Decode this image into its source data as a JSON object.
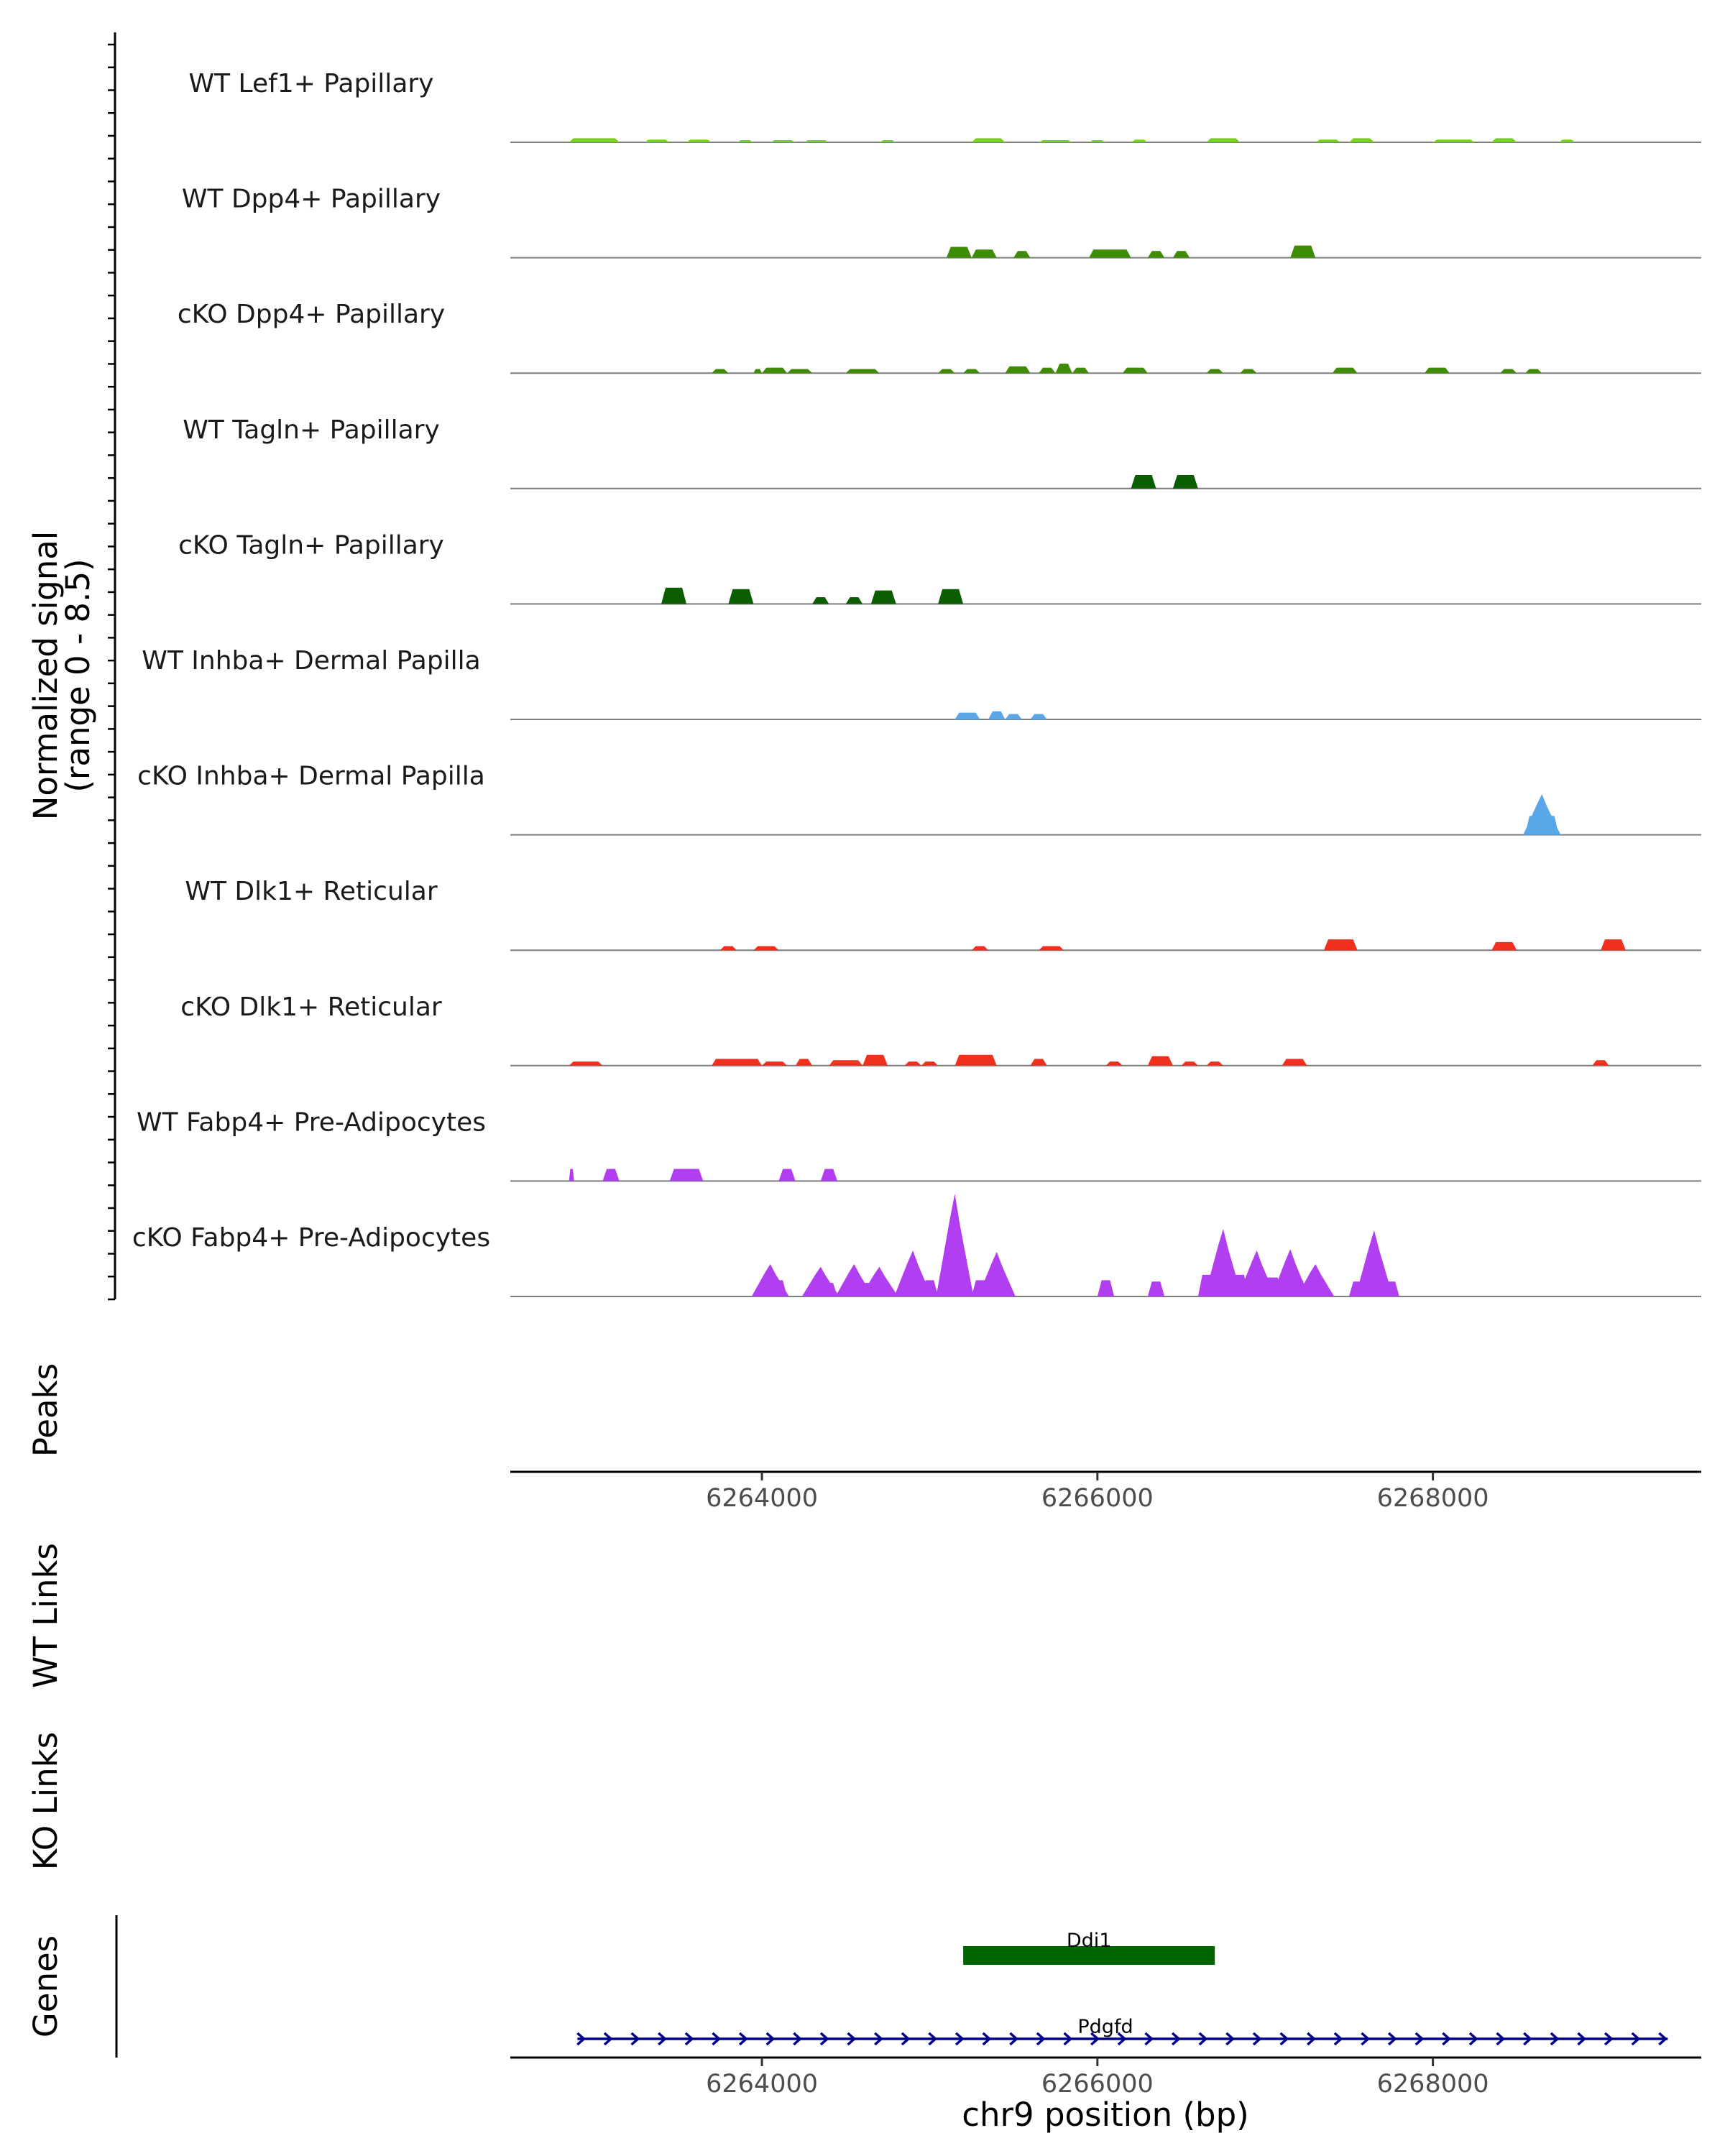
{
  "chart_data": {
    "type": "area",
    "title": "",
    "region": {
      "chrom": "chr9",
      "start": 6262500,
      "end": 6269600
    },
    "signal_axis": {
      "label_line1": "Normalized signal",
      "label_line2": "(range 0 - 8.5)",
      "ylim": [
        0,
        8.5
      ]
    },
    "x_axis": {
      "label": "chr9 position (bp)",
      "ticks": [
        6264000,
        6266000,
        6268000
      ],
      "tick_labels": [
        "6264000",
        "6266000",
        "6268000"
      ]
    },
    "tracks": [
      {
        "name": "WT Lef1+ Papillary",
        "color": "#76d11c",
        "segments": [
          [
            6262850,
            6263150,
            0.3
          ],
          [
            6263300,
            6263450,
            0.2
          ],
          [
            6263550,
            6263700,
            0.2
          ],
          [
            6263850,
            6263950,
            0.15
          ],
          [
            6264050,
            6264200,
            0.15
          ],
          [
            6264250,
            6264400,
            0.15
          ],
          [
            6264700,
            6264800,
            0.15
          ],
          [
            6265250,
            6265450,
            0.3
          ],
          [
            6265650,
            6265850,
            0.15
          ],
          [
            6265950,
            6266050,
            0.15
          ],
          [
            6266200,
            6266300,
            0.2
          ],
          [
            6266650,
            6266850,
            0.3
          ],
          [
            6267300,
            6267450,
            0.2
          ],
          [
            6267500,
            6267650,
            0.3
          ],
          [
            6268000,
            6268250,
            0.2
          ],
          [
            6268350,
            6268500,
            0.3
          ],
          [
            6268750,
            6268850,
            0.2
          ]
        ]
      },
      {
        "name": "WT Dpp4+ Papillary",
        "color": "#3f8c06",
        "segments": [
          [
            6265100,
            6265250,
            0.8
          ],
          [
            6265250,
            6265400,
            0.6
          ],
          [
            6265500,
            6265600,
            0.5
          ],
          [
            6265950,
            6266200,
            0.6
          ],
          [
            6266300,
            6266400,
            0.5
          ],
          [
            6266450,
            6266550,
            0.5
          ],
          [
            6267150,
            6267300,
            0.9
          ]
        ]
      },
      {
        "name": "cKO Dpp4+ Papillary",
        "color": "#3f8c06",
        "segments": [
          [
            6263700,
            6263800,
            0.3
          ],
          [
            6263950,
            6264000,
            0.3
          ],
          [
            6264000,
            6264150,
            0.4
          ],
          [
            6264150,
            6264300,
            0.3
          ],
          [
            6264500,
            6264700,
            0.3
          ],
          [
            6265050,
            6265150,
            0.3
          ],
          [
            6265200,
            6265300,
            0.3
          ],
          [
            6265450,
            6265600,
            0.5
          ],
          [
            6265650,
            6265750,
            0.4
          ],
          [
            6265750,
            6265850,
            0.7
          ],
          [
            6265850,
            6265950,
            0.4
          ],
          [
            6266150,
            6266300,
            0.4
          ],
          [
            6266650,
            6266750,
            0.3
          ],
          [
            6266850,
            6266950,
            0.3
          ],
          [
            6267400,
            6267550,
            0.4
          ],
          [
            6267950,
            6268100,
            0.4
          ],
          [
            6268400,
            6268500,
            0.3
          ],
          [
            6268550,
            6268650,
            0.3
          ]
        ]
      },
      {
        "name": "WT Tagln+ Papillary",
        "color": "#0b5e00",
        "segments": [
          [
            6266200,
            6266350,
            1.0
          ],
          [
            6266450,
            6266600,
            1.0
          ]
        ]
      },
      {
        "name": "cKO Tagln+ Papillary",
        "color": "#0b5e00",
        "segments": [
          [
            6263400,
            6263550,
            1.2
          ],
          [
            6263800,
            6263950,
            1.1
          ],
          [
            6264300,
            6264400,
            0.5
          ],
          [
            6264500,
            6264600,
            0.5
          ],
          [
            6264650,
            6264800,
            1.0
          ],
          [
            6265050,
            6265200,
            1.1
          ]
        ]
      },
      {
        "name": "WT Inhba+ Dermal Papilla",
        "color": "#59a6e8",
        "segments": [
          [
            6265150,
            6265300,
            0.5
          ],
          [
            6265350,
            6265450,
            0.6
          ],
          [
            6265450,
            6265550,
            0.4
          ],
          [
            6265600,
            6265700,
            0.4
          ]
        ]
      },
      {
        "name": "cKO Inhba+ Dermal Papilla",
        "color": "#59a6e8",
        "segments": [
          [
            6268550,
            6268750,
            1.4
          ]
        ],
        "peaks": [
          [
            6268650,
            3.0
          ]
        ]
      },
      {
        "name": "WT Dlk1+ Reticular",
        "color": "#f23020",
        "segments": [
          [
            6263750,
            6263850,
            0.3
          ],
          [
            6263950,
            6264100,
            0.3
          ],
          [
            6265250,
            6265350,
            0.3
          ],
          [
            6265650,
            6265800,
            0.3
          ],
          [
            6267350,
            6267550,
            0.8
          ],
          [
            6268350,
            6268500,
            0.6
          ],
          [
            6269000,
            6269150,
            0.8
          ]
        ]
      },
      {
        "name": "cKO Dlk1+ Reticular",
        "color": "#f23020",
        "segments": [
          [
            6262850,
            6263050,
            0.3
          ],
          [
            6263700,
            6264000,
            0.5
          ],
          [
            6264000,
            6264150,
            0.3
          ],
          [
            6264200,
            6264300,
            0.5
          ],
          [
            6264400,
            6264600,
            0.4
          ],
          [
            6264600,
            6264750,
            0.8
          ],
          [
            6264850,
            6264950,
            0.3
          ],
          [
            6264950,
            6265050,
            0.3
          ],
          [
            6265150,
            6265400,
            0.8
          ],
          [
            6265600,
            6265700,
            0.5
          ],
          [
            6266050,
            6266150,
            0.3
          ],
          [
            6266300,
            6266450,
            0.7
          ],
          [
            6266500,
            6266600,
            0.3
          ],
          [
            6266650,
            6266750,
            0.3
          ],
          [
            6267100,
            6267250,
            0.5
          ],
          [
            6268950,
            6269050,
            0.4
          ]
        ]
      },
      {
        "name": "WT Fabp4+ Pre-Adipocytes",
        "color": "#b13ef0",
        "segments": [
          [
            6262850,
            6262880,
            0.9
          ],
          [
            6263050,
            6263150,
            0.9
          ],
          [
            6263450,
            6263650,
            0.9
          ],
          [
            6264100,
            6264200,
            0.9
          ],
          [
            6264350,
            6264450,
            0.9
          ]
        ]
      },
      {
        "name": "cKO Fabp4+ Pre-Adipocytes",
        "color": "#b13ef0",
        "segments": [
          [
            6264000,
            6264150,
            1.2
          ],
          [
            6264300,
            6264450,
            1.0
          ],
          [
            6264500,
            6264700,
            1.0
          ],
          [
            6264850,
            6264950,
            1.0
          ],
          [
            6264950,
            6265050,
            1.2
          ],
          [
            6265050,
            6265250,
            1.5
          ],
          [
            6265250,
            6265450,
            1.2
          ],
          [
            6266000,
            6266100,
            1.2
          ],
          [
            6266300,
            6266400,
            1.1
          ],
          [
            6266600,
            6266900,
            1.6
          ],
          [
            6266900,
            6267100,
            1.4
          ],
          [
            6267150,
            6267250,
            1.2
          ],
          [
            6267500,
            6267700,
            1.1
          ],
          [
            6267700,
            6267800,
            1.1
          ]
        ],
        "peaks": [
          [
            6264050,
            2.4
          ],
          [
            6264350,
            2.2
          ],
          [
            6264550,
            2.4
          ],
          [
            6264700,
            2.2
          ],
          [
            6264900,
            3.4
          ],
          [
            6265150,
            7.6
          ],
          [
            6265400,
            3.3
          ],
          [
            6266750,
            5.0
          ],
          [
            6266950,
            3.4
          ],
          [
            6267150,
            3.5
          ],
          [
            6267300,
            2.4
          ],
          [
            6267650,
            4.9
          ]
        ]
      }
    ],
    "side_tracks": {
      "peaks": "Peaks",
      "wt_links": "WT Links",
      "ko_links": "KO Links",
      "genes": "Genes"
    },
    "genes": [
      {
        "name": "Ddi1",
        "start": 6265200,
        "end": 6266700,
        "strand": "+",
        "color": "#006400"
      },
      {
        "name": "Pdgfd",
        "start": 6262900,
        "end": 6269400,
        "strand": "+",
        "color": "#00008b"
      }
    ]
  }
}
